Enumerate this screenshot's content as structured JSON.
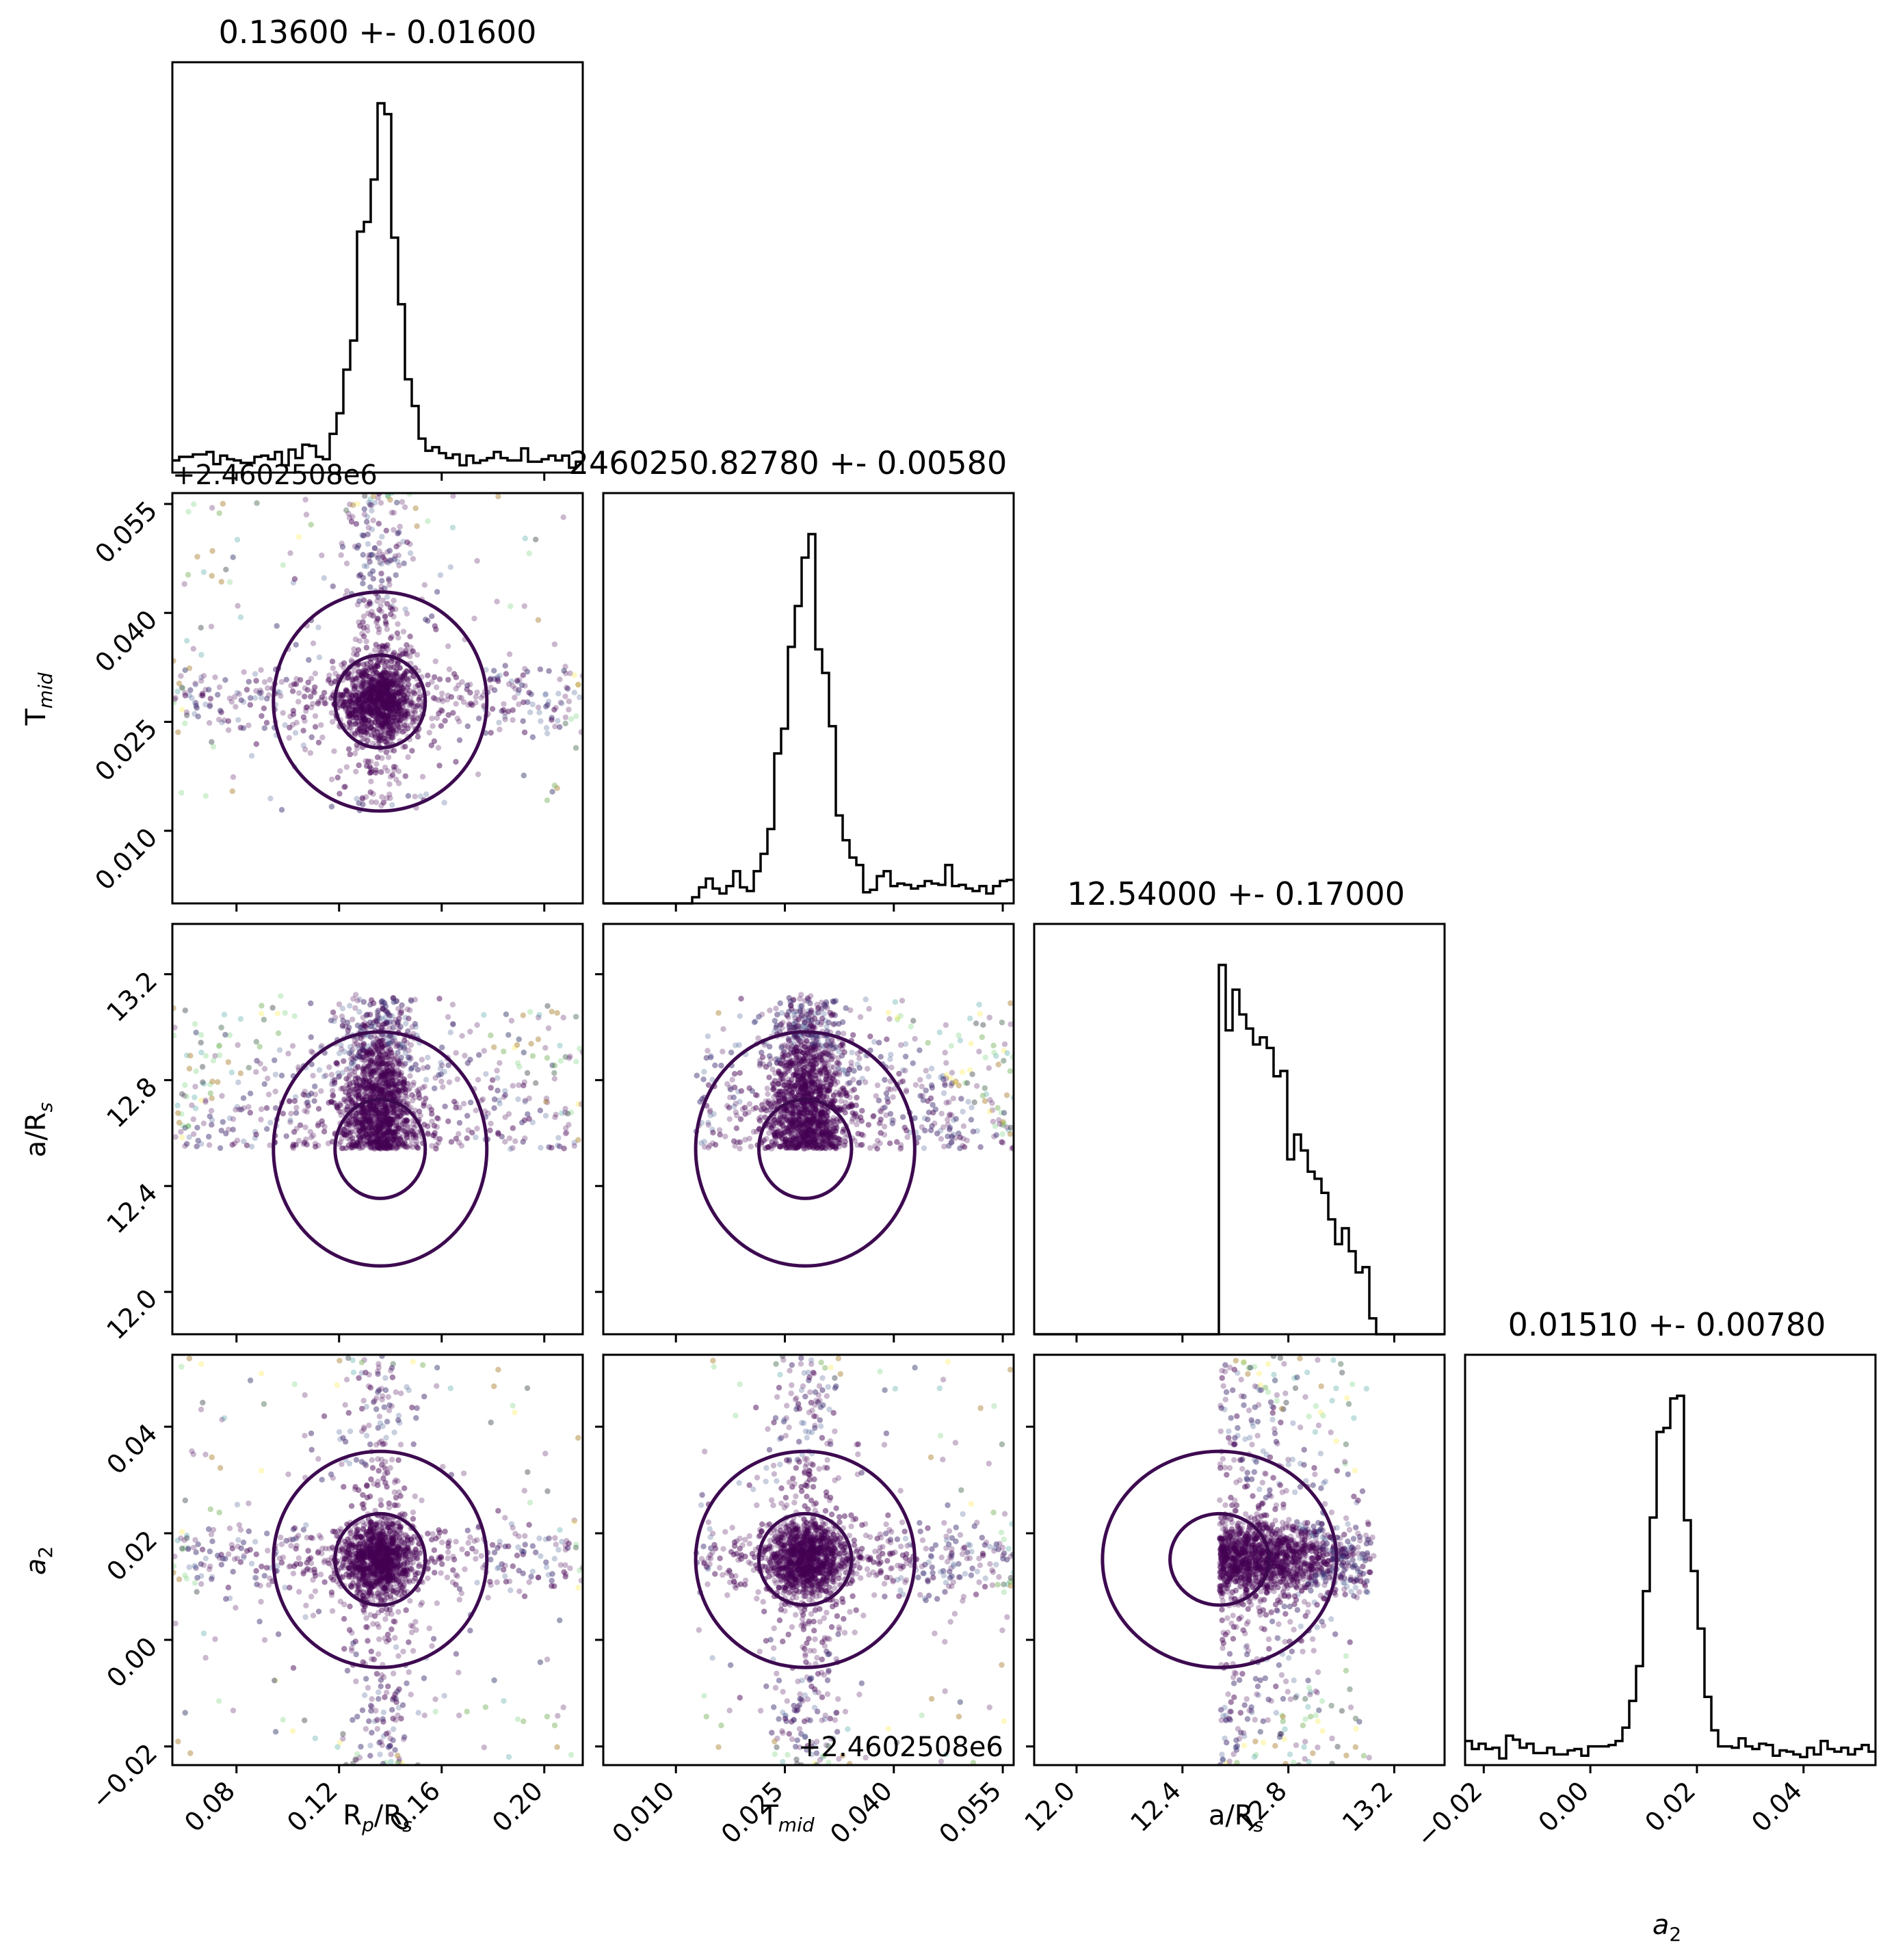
{
  "chart_data": {
    "type": "corner",
    "params": [
      {
        "key": "rp",
        "label": "R_p/R_s",
        "label_main": "R",
        "label_sub": "p",
        "label_tail": "/R",
        "label_sub2": "s",
        "title": "0.13600 +- 0.01600",
        "median": 0.136,
        "sigma": 0.016,
        "range": [
          0.055,
          0.215
        ],
        "ticks": [
          "0.08",
          "0.12",
          "0.16",
          "0.20"
        ],
        "tick_values": [
          0.08,
          0.12,
          0.16,
          0.2
        ]
      },
      {
        "key": "tmid",
        "label": "T_mid",
        "label_main": "T",
        "label_sub": "mid",
        "label_tail": "",
        "label_sub2": "",
        "title": "2460250.82780 +- 0.00580",
        "median": 0.0278,
        "sigma": 0.0058,
        "range": [
          0.0,
          0.0565
        ],
        "ticks": [
          "0.010",
          "0.025",
          "0.040",
          "0.055"
        ],
        "tick_values": [
          0.01,
          0.025,
          0.04,
          0.055
        ],
        "offset_label": "+2.4602508e6",
        "posterior_low": 0.0128
      },
      {
        "key": "ars",
        "label": "a/R_s",
        "label_main": "a/R",
        "label_sub": "s",
        "label_tail": "",
        "label_sub2": "",
        "title": "12.54000 +- 0.17000",
        "median": 12.54,
        "sigma": 0.17,
        "range": [
          11.84,
          13.39
        ],
        "ticks": [
          "12.0",
          "12.4",
          "12.8",
          "13.2"
        ],
        "tick_values": [
          12.0,
          12.4,
          12.8,
          13.2
        ],
        "posterior_low": 12.54,
        "posterior_high": 13.15
      },
      {
        "key": "a2",
        "label": "a_2",
        "label_main": "a",
        "label_sub": "2",
        "label_tail": "",
        "label_sub2": "",
        "title": "0.01510 +- 0.00780",
        "median": 0.0151,
        "sigma": 0.0078,
        "range": [
          -0.0235,
          0.0535
        ],
        "ticks": [
          "−0.02",
          "0.00",
          "0.02",
          "0.04"
        ],
        "tick_values": [
          -0.02,
          0.0,
          0.02,
          0.04
        ]
      }
    ],
    "scatter_colormap": [
      "#440154",
      "#3b528b",
      "#21918c",
      "#5ec962",
      "#fde725"
    ],
    "contour_color": "#3d0a50",
    "hist_color": "#000000"
  }
}
